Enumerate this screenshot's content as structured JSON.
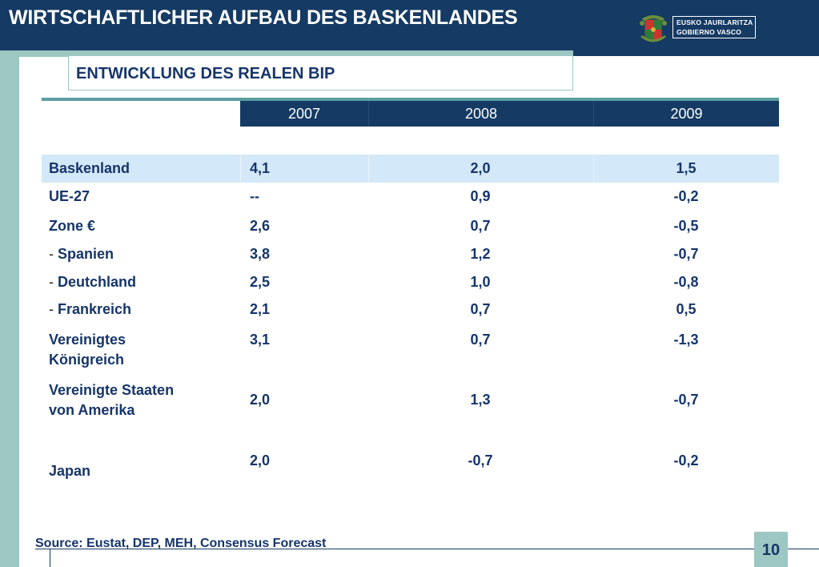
{
  "header": {
    "title": "WIRTSCHAFTLICHER AUFBAU DES BASKENLANDES",
    "logo_line1": "EUSKO JAURLARITZA",
    "logo_line2": "GOBIERNO VASCO"
  },
  "subtitle": "ENTWICKLUNG DES REALEN BIP",
  "table": {
    "columns": [
      "2007",
      "2008",
      "2009"
    ],
    "rows": [
      {
        "prefix": "",
        "label": "Baskenland",
        "v2007": "4,1",
        "v2008": "2,0",
        "v2009": "1,5"
      },
      {
        "prefix": "",
        "label": "UE-27",
        "v2007": "--",
        "v2008": "0,9",
        "v2009": "-0,2"
      },
      {
        "prefix": "",
        "label": "Zone €",
        "v2007": "2,6",
        "v2008": "0,7",
        "v2009": "-0,5"
      },
      {
        "prefix": "- ",
        "label": "Spanien",
        "v2007": "3,8",
        "v2008": "1,2",
        "v2009": "-0,7"
      },
      {
        "prefix": "- ",
        "label": "Deutchland",
        "v2007": "2,5",
        "v2008": "1,0",
        "v2009": "-0,8"
      },
      {
        "prefix": "- ",
        "label": "Frankreich",
        "v2007": "2,1",
        "v2008": "0,7",
        "v2009": "0,5"
      },
      {
        "prefix": "",
        "label": "Vereinigtes",
        "label2": "Königreich",
        "v2007": "3,1",
        "v2008": "0,7",
        "v2009": "-1,3"
      },
      {
        "prefix": "",
        "label": "Vereinigte Staaten",
        "label2": "von Amerika",
        "v2007": "2,0",
        "v2008": "1,3",
        "v2009": "-0,7"
      },
      {
        "prefix": "",
        "label": "Japan",
        "v2007": "2,0",
        "v2008": "-0,7",
        "v2009": "-0,2"
      }
    ]
  },
  "footer": {
    "source": "Source: Eustat, DEP, MEH, Consensus Forecast",
    "page_number": "10"
  },
  "colors": {
    "header_bg": "#153a63",
    "accent_teal": "#9cc7c2",
    "highlight_row": "#d3e8f8",
    "text_blue": "#16356a"
  }
}
